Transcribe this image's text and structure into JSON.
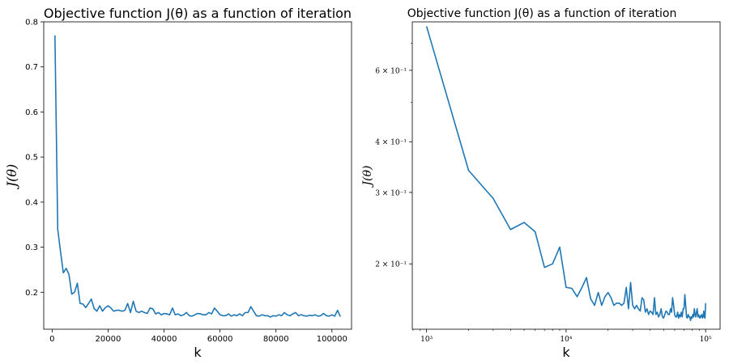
{
  "chart_data": [
    {
      "type": "line",
      "title": "Objective function J(θ) as a function of iteration",
      "xlabel": "k",
      "ylabel": "J(θ)",
      "xscale": "linear",
      "yscale": "linear",
      "xlim": [
        -3000,
        107000
      ],
      "ylim": [
        0.118,
        0.8
      ],
      "xticks": [
        0,
        20000,
        40000,
        60000,
        80000,
        100000
      ],
      "xtick_labels": [
        "0",
        "20000",
        "40000",
        "60000",
        "80000",
        "100000"
      ],
      "yticks": [
        0.2,
        0.3,
        0.4,
        0.5,
        0.6,
        0.7,
        0.8
      ],
      "ytick_labels": [
        "0.2",
        "0.3",
        "0.4",
        "0.5",
        "0.6",
        "0.7",
        "0.8"
      ],
      "grid": false,
      "color": "#1f77b4",
      "series": [
        {
          "x": [
            1000,
            2000,
            3000,
            4000,
            5000,
            6000,
            7000,
            8000,
            9000,
            10000,
            11000,
            12000,
            13000,
            14000,
            15000,
            16000,
            17000,
            18000,
            19000,
            20000,
            21000,
            22000,
            23000,
            24000,
            25000,
            26000,
            27000,
            28000,
            29000,
            30000,
            31000,
            32000,
            33000,
            34000,
            35000,
            36000,
            37000,
            38000,
            39000,
            40000,
            41000,
            42000,
            43000,
            44000,
            45000,
            46000,
            47000,
            48000,
            49000,
            50000,
            51000,
            52000,
            53000,
            54000,
            55000,
            56000,
            57000,
            58000,
            59000,
            60000,
            61000,
            62000,
            63000,
            64000,
            65000,
            66000,
            67000,
            68000,
            69000,
            70000,
            71000,
            72000,
            73000,
            74000,
            75000,
            76000,
            77000,
            78000,
            79000,
            80000,
            81000,
            82000,
            83000,
            84000,
            85000,
            86000,
            87000,
            88000,
            89000,
            90000,
            91000,
            92000,
            93000,
            94000,
            95000,
            96000,
            97000,
            98000,
            99000,
            100000,
            101000,
            102000,
            103000
          ],
          "y": [
            0.77,
            0.34,
            0.29,
            0.243,
            0.253,
            0.24,
            0.196,
            0.2,
            0.22,
            0.175,
            0.174,
            0.166,
            0.175,
            0.185,
            0.164,
            0.158,
            0.17,
            0.158,
            0.166,
            0.17,
            0.165,
            0.158,
            0.16,
            0.16,
            0.158,
            0.16,
            0.175,
            0.155,
            0.18,
            0.158,
            0.155,
            0.158,
            0.155,
            0.153,
            0.165,
            0.163,
            0.152,
            0.155,
            0.15,
            0.153,
            0.152,
            0.15,
            0.165,
            0.15,
            0.152,
            0.148,
            0.15,
            0.155,
            0.148,
            0.147,
            0.15,
            0.153,
            0.152,
            0.15,
            0.15,
            0.155,
            0.152,
            0.165,
            0.158,
            0.15,
            0.148,
            0.148,
            0.152,
            0.147,
            0.15,
            0.148,
            0.152,
            0.148,
            0.155,
            0.155,
            0.168,
            0.158,
            0.148,
            0.147,
            0.15,
            0.148,
            0.148,
            0.145,
            0.148,
            0.147,
            0.15,
            0.148,
            0.155,
            0.15,
            0.148,
            0.152,
            0.155,
            0.148,
            0.15,
            0.148,
            0.147,
            0.149,
            0.148,
            0.15,
            0.147,
            0.148,
            0.153,
            0.148,
            0.147,
            0.15,
            0.147,
            0.16,
            0.146
          ]
        }
      ]
    },
    {
      "type": "line",
      "title": "Objective function J(θ) as a function of iteration",
      "xlabel": "k",
      "ylabel": "J(θ)",
      "xscale": "log",
      "yscale": "log",
      "xlim": [
        790,
        127000
      ],
      "ylim": [
        0.138,
        0.79
      ],
      "xticks": [
        1000,
        10000,
        100000
      ],
      "xtick_labels": [
        "10³",
        "10⁴",
        "10⁵"
      ],
      "yticks": [
        0.2,
        0.3,
        0.4,
        0.6
      ],
      "ytick_labels": [
        "2 × 10⁻¹",
        "3 × 10⁻¹",
        "4 × 10⁻¹",
        "6 × 10⁻¹"
      ],
      "grid": false,
      "color": "#1f77b4",
      "series": [
        {
          "x": [
            1000,
            2000,
            3000,
            4000,
            5000,
            6000,
            7000,
            8000,
            9000,
            10000,
            11000,
            12000,
            13000,
            14000,
            15000,
            16000,
            17000,
            18000,
            19000,
            20000,
            21000,
            22000,
            23000,
            24000,
            25000,
            26000,
            27000,
            28000,
            29000,
            30000,
            31000,
            32000,
            33000,
            34000,
            35000,
            36000,
            37000,
            38000,
            39000,
            40000,
            41000,
            42000,
            43000,
            44000,
            45000,
            46000,
            47000,
            48000,
            49000,
            50000,
            51000,
            52000,
            53000,
            54000,
            55000,
            56000,
            57000,
            58000,
            59000,
            60000,
            61000,
            62000,
            63000,
            64000,
            65000,
            66000,
            67000,
            68000,
            69000,
            70000,
            71000,
            72000,
            73000,
            74000,
            75000,
            76000,
            77000,
            78000,
            79000,
            80000,
            81000,
            82000,
            83000,
            84000,
            85000,
            86000,
            87000,
            88000,
            89000,
            90000,
            91000,
            92000,
            93000,
            94000,
            95000,
            96000,
            97000,
            98000,
            99000,
            100000
          ],
          "y": [
            0.77,
            0.34,
            0.29,
            0.243,
            0.253,
            0.24,
            0.196,
            0.2,
            0.22,
            0.175,
            0.174,
            0.166,
            0.175,
            0.185,
            0.164,
            0.158,
            0.17,
            0.158,
            0.166,
            0.17,
            0.165,
            0.158,
            0.16,
            0.16,
            0.158,
            0.16,
            0.175,
            0.155,
            0.18,
            0.158,
            0.155,
            0.158,
            0.155,
            0.153,
            0.165,
            0.163,
            0.152,
            0.155,
            0.15,
            0.153,
            0.152,
            0.15,
            0.165,
            0.15,
            0.152,
            0.148,
            0.15,
            0.155,
            0.148,
            0.147,
            0.15,
            0.153,
            0.152,
            0.15,
            0.15,
            0.155,
            0.152,
            0.165,
            0.158,
            0.15,
            0.148,
            0.148,
            0.152,
            0.147,
            0.15,
            0.148,
            0.152,
            0.148,
            0.155,
            0.155,
            0.168,
            0.158,
            0.148,
            0.147,
            0.15,
            0.148,
            0.148,
            0.145,
            0.148,
            0.147,
            0.15,
            0.148,
            0.155,
            0.15,
            0.148,
            0.152,
            0.155,
            0.148,
            0.15,
            0.148,
            0.147,
            0.149,
            0.148,
            0.15,
            0.147,
            0.148,
            0.153,
            0.148,
            0.147,
            0.16
          ]
        }
      ]
    }
  ]
}
